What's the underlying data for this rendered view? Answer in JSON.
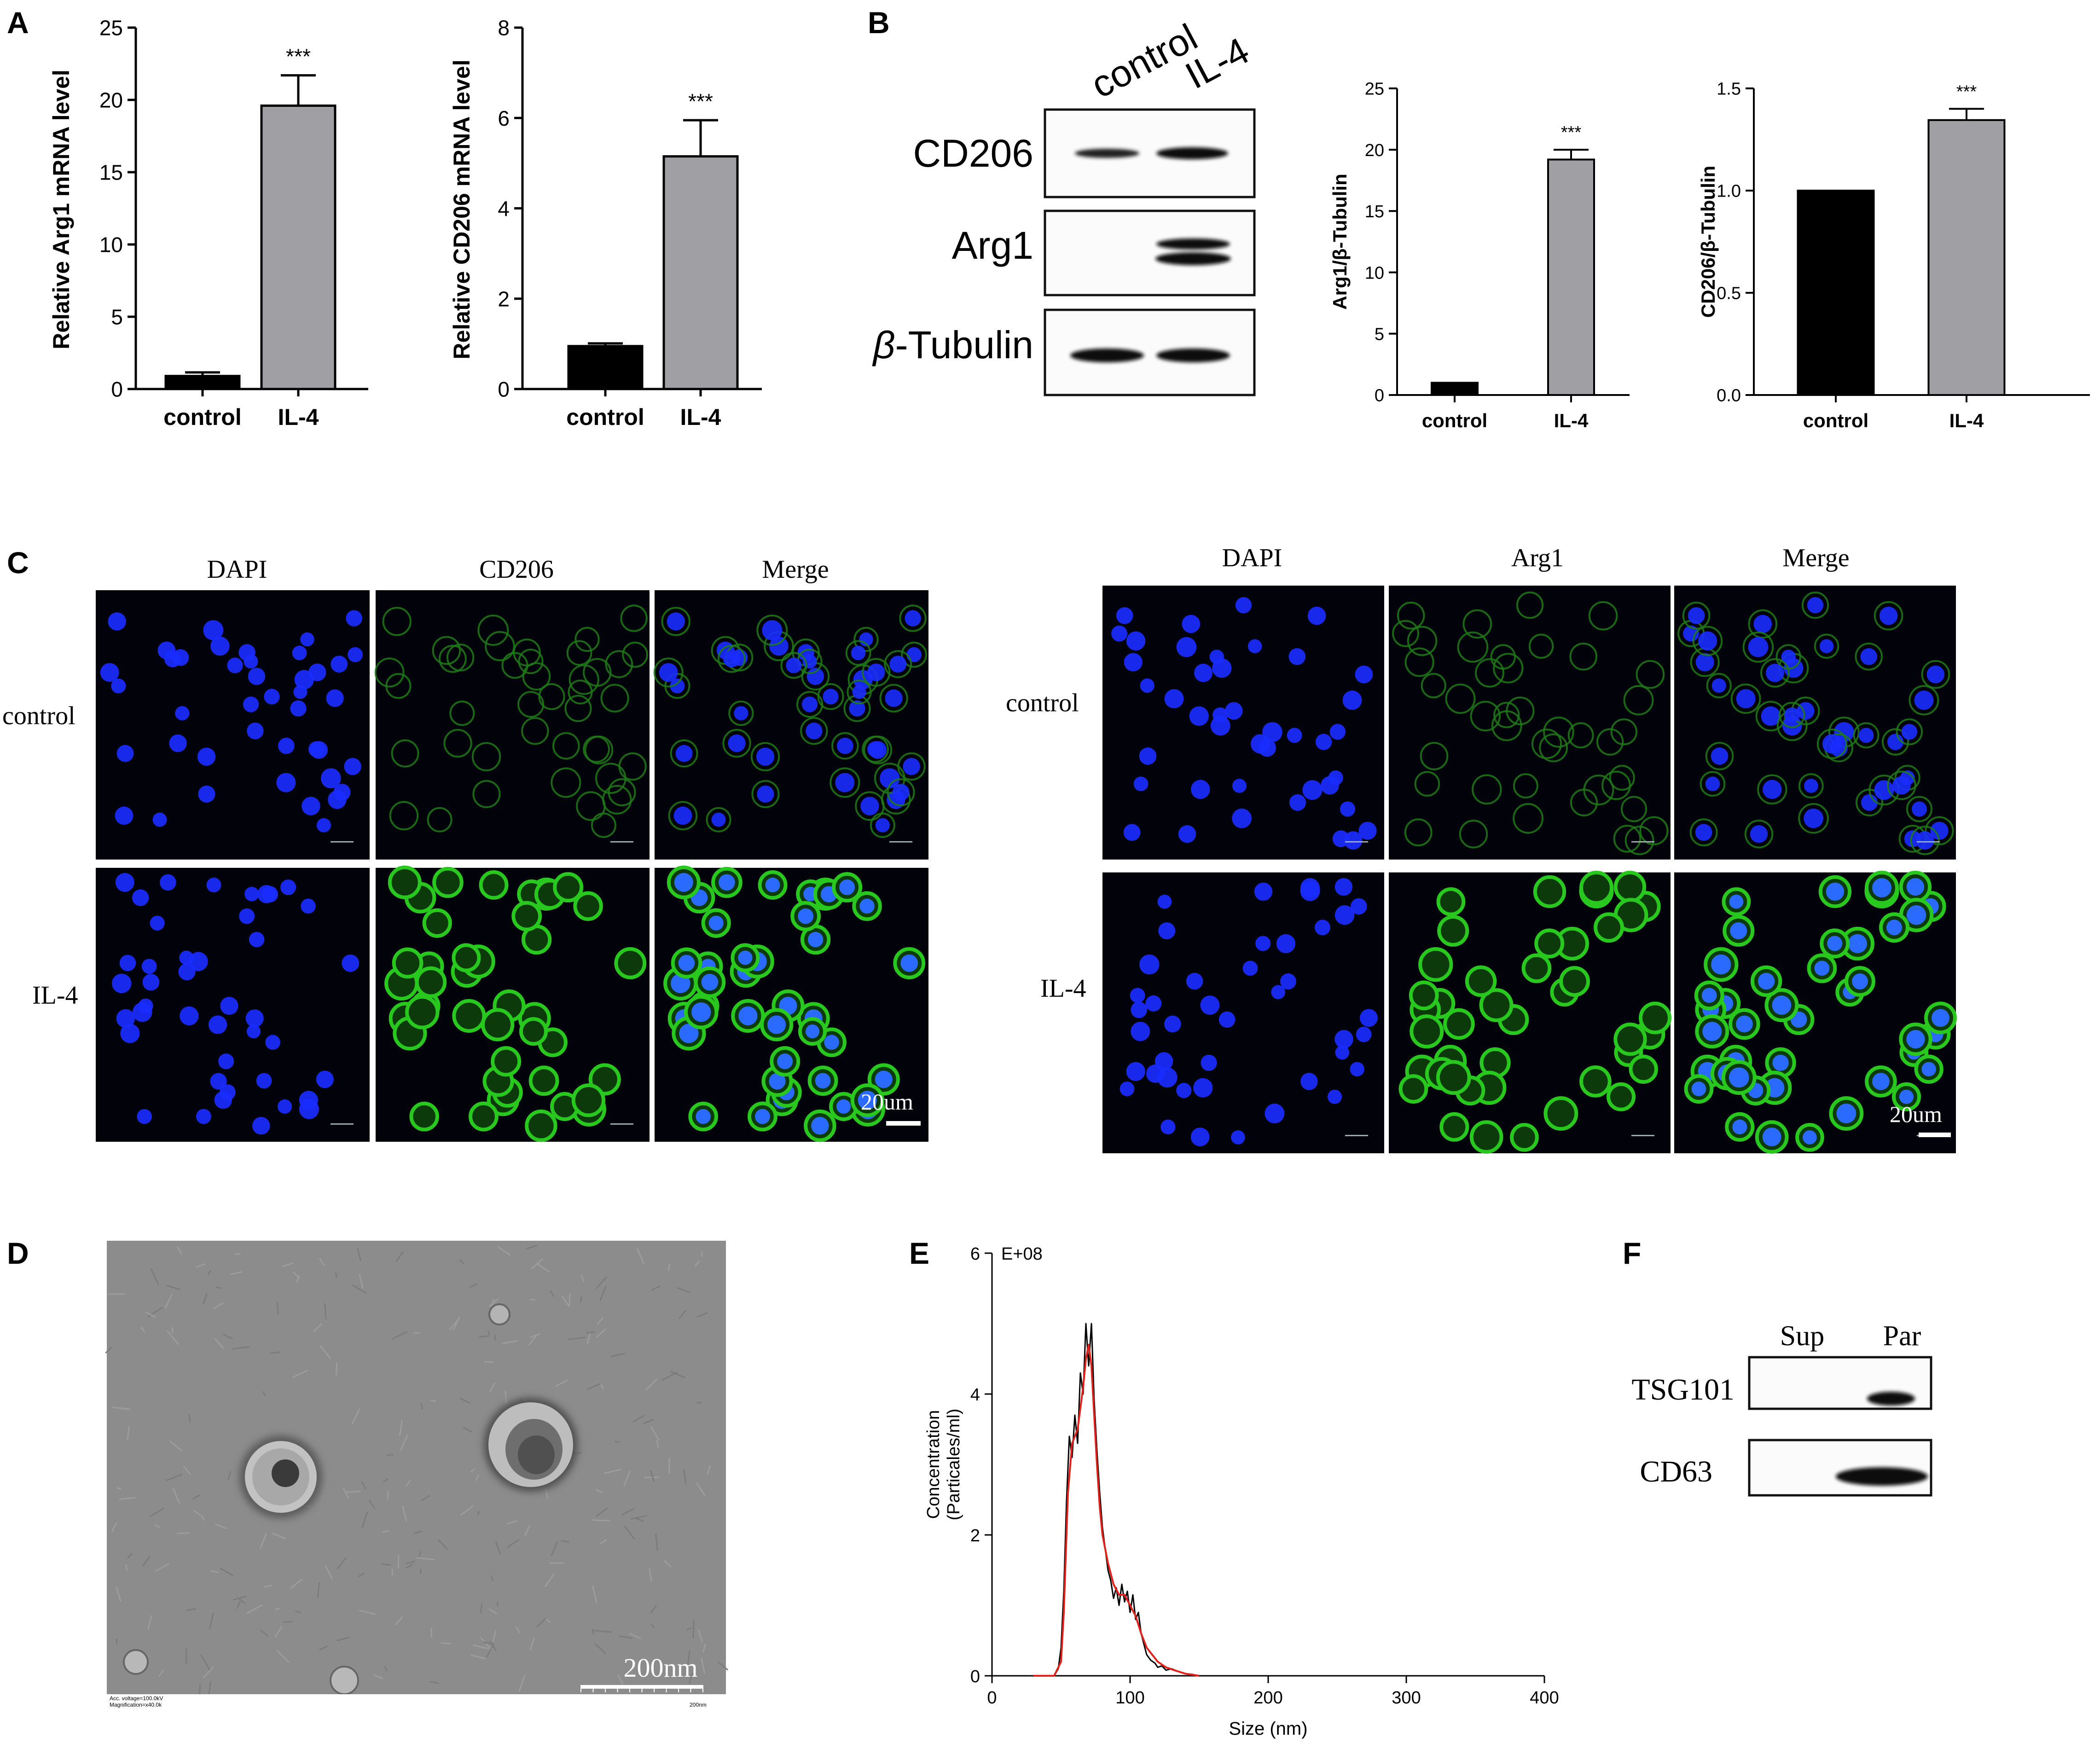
{
  "panel_letters": [
    "A",
    "B",
    "C",
    "D",
    "E",
    "F"
  ],
  "significance": "***",
  "chart_data": [
    {
      "id": "A1",
      "type": "bar",
      "categories": [
        "control",
        "IL-4"
      ],
      "values": [
        0.9,
        19.6
      ],
      "errors": [
        0.25,
        2.1
      ],
      "ylabel": "Relative Arg1 mRNA level",
      "ylim": [
        0,
        25
      ],
      "yticks": [
        0,
        5,
        10,
        15,
        20,
        25
      ],
      "ytick_labels": [
        "0",
        "5",
        "10",
        "15",
        "20",
        "25"
      ],
      "bar_colors": [
        "#000000",
        "#a0a0a4"
      ],
      "annotations": [
        "",
        "***"
      ]
    },
    {
      "id": "A2",
      "type": "bar",
      "categories": [
        "control",
        "IL-4"
      ],
      "values": [
        0.95,
        5.15
      ],
      "errors": [
        0.06,
        0.8
      ],
      "ylabel": "Relative CD206 mRNA level",
      "ylim": [
        0,
        8
      ],
      "yticks": [
        0,
        2,
        4,
        6,
        8
      ],
      "ytick_labels": [
        "0",
        "2",
        "4",
        "6",
        "8"
      ],
      "bar_colors": [
        "#000000",
        "#a0a0a4"
      ],
      "annotations": [
        "",
        "***"
      ]
    },
    {
      "id": "B1",
      "type": "bar",
      "categories": [
        "control",
        "IL-4"
      ],
      "values": [
        1.0,
        19.2
      ],
      "errors": [
        0,
        0.8
      ],
      "ylabel": "Arg1/β-Tubulin",
      "ylim": [
        0,
        25
      ],
      "yticks": [
        0,
        5,
        10,
        15,
        20,
        25
      ],
      "ytick_labels": [
        "0",
        "5",
        "10",
        "15",
        "20",
        "25"
      ],
      "bar_colors": [
        "#000000",
        "#a0a0a4"
      ],
      "annotations": [
        "",
        "***"
      ]
    },
    {
      "id": "B2",
      "type": "bar",
      "categories": [
        "control",
        "IL-4"
      ],
      "values": [
        1.0,
        1.345
      ],
      "errors": [
        0,
        0.055
      ],
      "ylabel": "CD206/β-Tubulin",
      "ylim": [
        0,
        1.5
      ],
      "yticks": [
        0,
        0.5,
        1.0,
        1.5
      ],
      "ytick_labels": [
        "0.0",
        "0.5",
        "1.0",
        "1.5"
      ],
      "bar_colors": [
        "#000000",
        "#a0a0a4"
      ],
      "annotations": [
        "",
        "***"
      ]
    },
    {
      "id": "E",
      "type": "line",
      "xlabel": "Size (nm)",
      "ylabel": "Concentration\n(Particales/ml)",
      "multiplier_label": "E+08",
      "xlim": [
        0,
        400
      ],
      "ylim": [
        0,
        6
      ],
      "xticks": [
        0,
        100,
        200,
        300,
        400
      ],
      "yticks": [
        0,
        2,
        4,
        6
      ],
      "series": [
        {
          "color": "#000000",
          "x": [
            45,
            48,
            50,
            52,
            54,
            56,
            58,
            60,
            62,
            64,
            66,
            68,
            70,
            72,
            74,
            76,
            78,
            80,
            82,
            84,
            86,
            88,
            90,
            92,
            94,
            96,
            98,
            100,
            102,
            104,
            106,
            108,
            110,
            112,
            115,
            118,
            120,
            123,
            126,
            130,
            135,
            140,
            145,
            150
          ],
          "y": [
            0,
            0.1,
            0.4,
            1.2,
            2.5,
            3.4,
            3.1,
            3.7,
            3.3,
            4.3,
            4.0,
            5.0,
            4.4,
            5.0,
            3.9,
            3.2,
            2.6,
            2.1,
            1.8,
            1.5,
            1.35,
            1.1,
            1.25,
            1.0,
            1.3,
            1.05,
            1.2,
            0.9,
            1.15,
            0.8,
            0.9,
            0.6,
            0.45,
            0.3,
            0.22,
            0.18,
            0.12,
            0.14,
            0.08,
            0.1,
            0.06,
            0.03,
            0.02,
            0
          ]
        },
        {
          "color": "#e0201a",
          "x": [
            30,
            45,
            50,
            52,
            55,
            58,
            62,
            66,
            68,
            70,
            72,
            74,
            76,
            78,
            80,
            84,
            88,
            92,
            96,
            100,
            104,
            108,
            112,
            116,
            120,
            126,
            132,
            140,
            150
          ],
          "y": [
            0,
            0,
            0.2,
            0.9,
            2.6,
            3.3,
            3.5,
            4.1,
            4.5,
            4.7,
            4.4,
            3.7,
            3.0,
            2.4,
            2.0,
            1.6,
            1.3,
            1.15,
            1.15,
            1.0,
            0.85,
            0.6,
            0.4,
            0.3,
            0.2,
            0.12,
            0.08,
            0.03,
            0
          ]
        }
      ]
    }
  ],
  "blot_B": {
    "lanes": [
      "control",
      "IL-4"
    ],
    "rows": [
      "CD206",
      "Arg1",
      "β-Tubulin"
    ],
    "beta_symbol": "β",
    "tubulin_suffix": "-Tubulin"
  },
  "panel_C": {
    "left_columns": [
      "DAPI",
      "CD206",
      "Merge"
    ],
    "right_columns": [
      "DAPI",
      "Arg1",
      "Merge"
    ],
    "rows": [
      "control",
      "IL-4"
    ],
    "scale_label": "20um"
  },
  "panel_D": {
    "scale_label": "200nm",
    "footer_line1": "Acc. voltage=100.0kV",
    "footer_line2": "Magnification=x40.0k",
    "footer_right": "200nm"
  },
  "panel_F": {
    "lanes": [
      "Sup",
      "Par"
    ],
    "rows": [
      "TSG101",
      "CD63"
    ]
  },
  "colors": {
    "dapi": "#1a2cff",
    "green": "#28c81e",
    "micro_bg": "#02020a",
    "em_bg": "#8a8a8a",
    "red_curve": "#e0201a"
  }
}
